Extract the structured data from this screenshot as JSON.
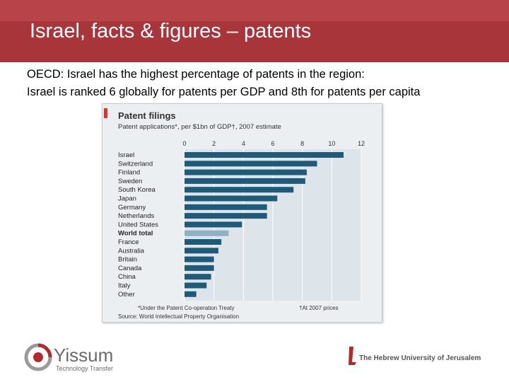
{
  "slide": {
    "title": "Israel, facts & figures – patents",
    "line1": "OECD: Israel has the highest percentage of patents in the region:",
    "line2": "Israel is ranked 6 globally for patents per GDP and 8th for patents per capita"
  },
  "chart_data": {
    "type": "bar",
    "orientation": "horizontal",
    "title": "Patent filings",
    "subtitle": "Patent applications*, per $1bn of GDP†, 2007 estimate",
    "categories": [
      "Israel",
      "Switzerland",
      "Finland",
      "Sweden",
      "South Korea",
      "Japan",
      "Germany",
      "Netherlands",
      "United States",
      "World total",
      "France",
      "Australia",
      "Britain",
      "Canada",
      "China",
      "Italy",
      "Other"
    ],
    "values": [
      10.8,
      9.0,
      8.3,
      8.2,
      7.4,
      6.3,
      5.6,
      5.6,
      3.9,
      3.0,
      2.5,
      2.3,
      2.0,
      2.0,
      1.8,
      1.5,
      0.8
    ],
    "highlight": "World total",
    "xlim": [
      0,
      12
    ],
    "xticks": [
      0,
      2,
      4,
      6,
      8,
      10,
      12
    ],
    "footnote_left": "*Under the Patent Co-operation Treaty",
    "footnote_right": "†At 2007 prices",
    "source": "Source: World Intellectual Property Organisation",
    "colors": {
      "bar": "#1f5a78",
      "highlight": "#8fb1c4",
      "grid": "#ffffff",
      "accent": "#e03030"
    }
  },
  "logos": {
    "yissum_name": "Yissum",
    "yissum_tagline": "Technology Transfer",
    "huji_name": "The Hebrew University of Jerusalem"
  }
}
